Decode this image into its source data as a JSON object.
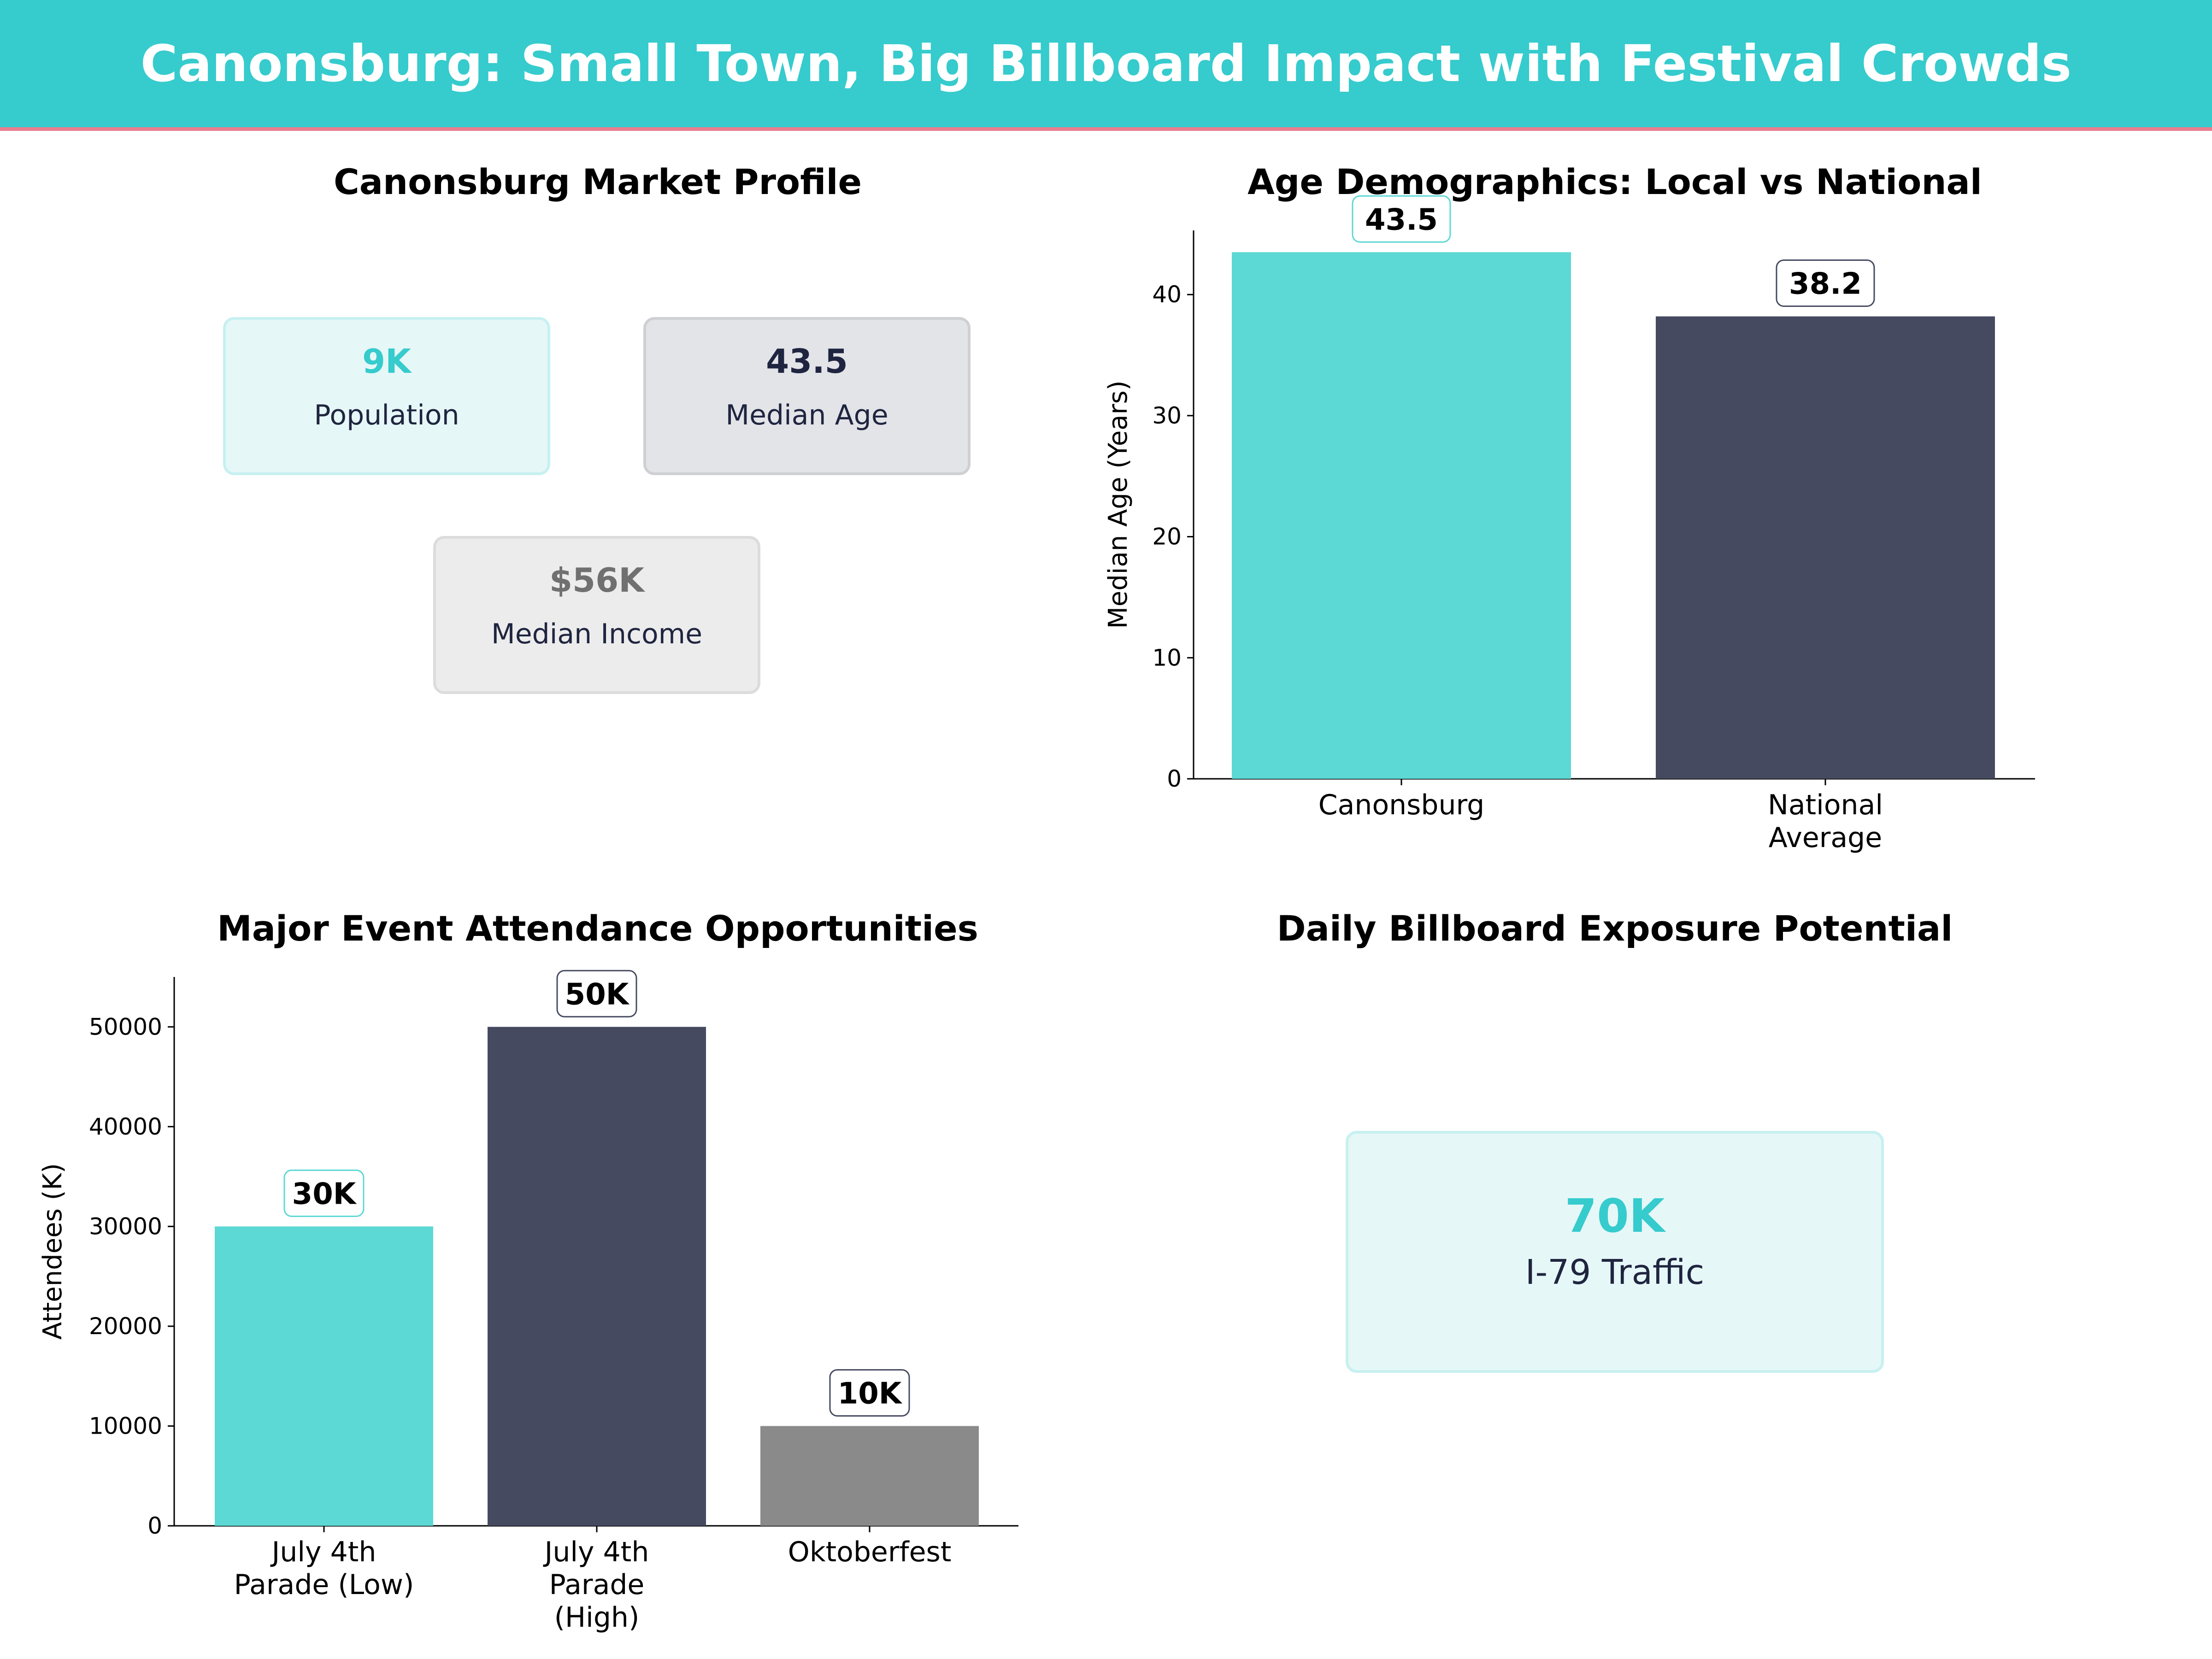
{
  "title": "Canonsburg: Small Town, Big Billboard Impact with Festival Crowds",
  "colors": {
    "header": "#36cbcd",
    "header_line": "#e87e8f",
    "teal": "#5cd8d5",
    "navy": "#454a60",
    "gray": "#8a8a8a"
  },
  "market_profile": {
    "title": "Canonsburg Market Profile",
    "cards": [
      {
        "value": "9K",
        "label": "Population"
      },
      {
        "value": "43.5",
        "label": "Median Age"
      },
      {
        "value": "$56K",
        "label": "Median Income"
      }
    ]
  },
  "exposure": {
    "title": "Daily Billboard Exposure Potential",
    "value": "70K",
    "label": "I-79 Traffic"
  },
  "chart_data": [
    {
      "type": "bar",
      "title": "Age Demographics: Local vs National",
      "xlabel": "",
      "ylabel": "Median Age (Years)",
      "categories": [
        [
          "Canonsburg"
        ],
        [
          "National",
          "Average"
        ]
      ],
      "values": [
        43.5,
        38.2
      ],
      "data_labels": [
        "43.5",
        "38.2"
      ],
      "ylim": [
        0,
        45.3
      ],
      "yticks": [
        0,
        10,
        20,
        30,
        40
      ],
      "colors": [
        "#5cd8d5",
        "#454a60"
      ]
    },
    {
      "type": "bar",
      "title": "Major Event Attendance Opportunities",
      "xlabel": "",
      "ylabel": "Attendees (K)",
      "categories": [
        [
          "July 4th",
          "Parade (Low)"
        ],
        [
          "July 4th",
          "Parade",
          "(High)"
        ],
        [
          "Oktoberfest"
        ]
      ],
      "values": [
        30000,
        50000,
        10000
      ],
      "data_labels": [
        "30K",
        "50K",
        "10K"
      ],
      "ylim": [
        0,
        55000
      ],
      "yticks": [
        0,
        10000,
        20000,
        30000,
        40000,
        50000
      ],
      "colors": [
        "#5cd8d5",
        "#454a60",
        "#8a8a8a"
      ]
    }
  ]
}
